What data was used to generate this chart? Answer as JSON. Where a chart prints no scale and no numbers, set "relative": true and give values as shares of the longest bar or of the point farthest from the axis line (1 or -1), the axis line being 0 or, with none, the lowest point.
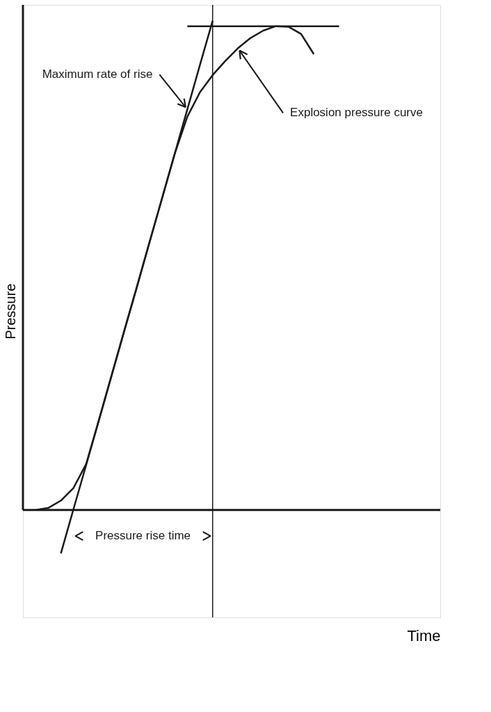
{
  "chart_data": {
    "type": "line",
    "relative": true,
    "xlabel": "Time",
    "ylabel": "Pressure",
    "categories": [
      null,
      null,
      null,
      null,
      null,
      null,
      null,
      null,
      null,
      null,
      null,
      null,
      null,
      null,
      null,
      null,
      null,
      null,
      null,
      null,
      null,
      null,
      null,
      null,
      null,
      null,
      null,
      null,
      null,
      null,
      null,
      null
    ],
    "series": [
      {
        "color": "#1a1a1a",
        "values": [
          0,
          0.004,
          0.019,
          0.045,
          0.094,
          0.183,
          0.274,
          0.365,
          0.455,
          0.546,
          0.637,
          0.728,
          0.804,
          0.854,
          0.889,
          0.918,
          0.944,
          0.965,
          0.98,
          0.989,
          0.988,
          0.973,
          0.932,
          null,
          null,
          null,
          null,
          null,
          null,
          null,
          null,
          null
        ]
      },
      {
        "color": "#1a1a1a",
        "values": [
          null,
          null,
          -0.089,
          0.002,
          0.092,
          0.183,
          0.274,
          0.365,
          0.455,
          0.547,
          0.637,
          0.728,
          0.819,
          0.91,
          1.0,
          null,
          null,
          null,
          null,
          null,
          null,
          null,
          null,
          null,
          null,
          null,
          null,
          null,
          null,
          null,
          null,
          null
        ]
      },
      {
        "color": "#1a1a1a",
        "values": [
          null,
          null,
          null,
          null,
          null,
          null,
          null,
          null,
          null,
          null,
          null,
          null,
          0.989,
          0.989,
          0.989,
          0.989,
          0.989,
          0.989,
          0.989,
          0.989,
          0.989,
          0.989,
          0.989,
          0.989,
          0.989,
          null,
          null,
          null,
          null,
          null,
          null,
          null
        ]
      }
    ],
    "ref_lines": [
      {
        "axis": "x",
        "color": "#1a1a1a"
      }
    ],
    "annotations": [
      "Maximum rate of rise",
      "Explosion pressure curve",
      "Pressure rise time"
    ]
  }
}
